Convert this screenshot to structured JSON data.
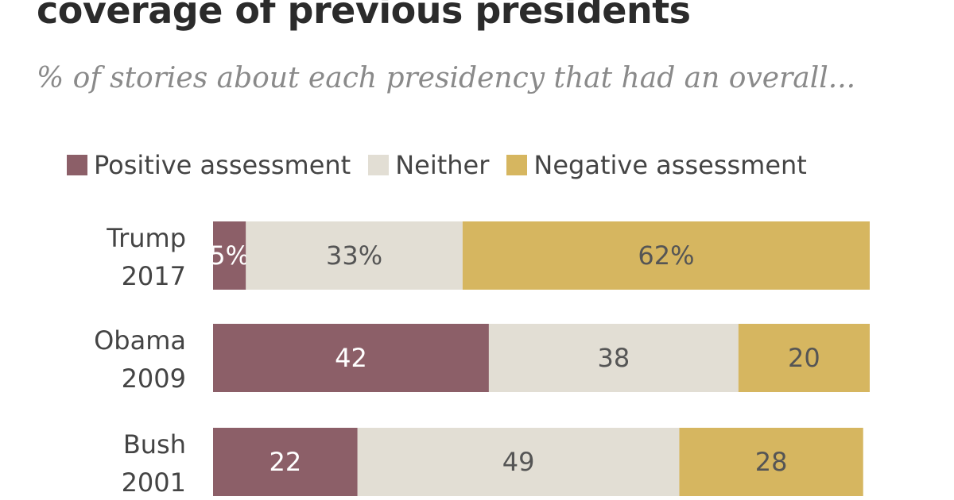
{
  "chart_data": {
    "type": "bar",
    "orientation": "horizontal",
    "stacked": true,
    "title": "coverage of previous presidents",
    "subtitle": "% of stories about each presidency that had an overall...",
    "categories": [
      {
        "name": "Trump",
        "year": "2017"
      },
      {
        "name": "Obama",
        "year": "2009"
      },
      {
        "name": "Bush",
        "year": "2001"
      }
    ],
    "series": [
      {
        "name": "Positive assessment",
        "color": "#8c5f68",
        "label_color": "#ffffff",
        "values": [
          5,
          42,
          22
        ],
        "labels": [
          "5%",
          "42",
          "22"
        ]
      },
      {
        "name": "Neither",
        "color": "#e2ded4",
        "label_color": "#555555",
        "values": [
          33,
          38,
          49
        ],
        "labels": [
          "33%",
          "38",
          "49"
        ]
      },
      {
        "name": "Negative assessment",
        "color": "#d6b660",
        "label_color": "#555555",
        "values": [
          62,
          20,
          28
        ],
        "labels": [
          "62%",
          "20",
          "28"
        ]
      }
    ],
    "xlim": [
      0,
      100
    ],
    "legend_position": "top-left",
    "grid": false
  }
}
